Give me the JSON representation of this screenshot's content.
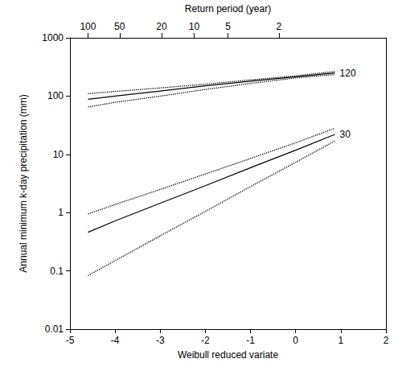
{
  "chart_data": {
    "type": "line",
    "x_label": "Weibull reduced variate",
    "y_label": "Annual minimum k-day precipitation (mm)",
    "x2_label": "Return period (year)",
    "log": "y",
    "grid": false,
    "xlim": [
      -5,
      2
    ],
    "xticks": [
      -5,
      -4,
      -3,
      -2,
      -1,
      0,
      1,
      2
    ],
    "x2lim": [
      -5,
      2
    ],
    "x2ticks": [
      {
        "value": -4.6,
        "label": "100"
      },
      {
        "value": -3.9,
        "label": "50"
      },
      {
        "value": -2.97,
        "label": "20"
      },
      {
        "value": -2.25,
        "label": "10"
      },
      {
        "value": -1.5,
        "label": "5"
      },
      {
        "value": -0.37,
        "label": "2"
      }
    ],
    "ylim": [
      0.01,
      1000
    ],
    "yticks": [
      0.01,
      0.1,
      1,
      10,
      100,
      1000
    ],
    "x": [
      -4.6,
      -4,
      -3,
      -2,
      -1,
      0,
      0.87
    ],
    "series": [
      {
        "name": "120",
        "color": "#000000",
        "line_style": "solid",
        "values": [
          88,
          100,
          122,
          150,
          180,
          215,
          250
        ]
      },
      {
        "color": "#000000",
        "line_style": "dotted",
        "values": [
          110,
          120,
          138,
          160,
          190,
          222,
          265
        ]
      },
      {
        "color": "#000000",
        "line_style": "dotted",
        "values": [
          65,
          78,
          100,
          130,
          165,
          205,
          235
        ]
      },
      {
        "name": "30",
        "color": "#000000",
        "line_style": "solid",
        "values": [
          0.46,
          0.72,
          1.45,
          2.9,
          5.9,
          11.8,
          22
        ]
      },
      {
        "color": "#000000",
        "line_style": "dotted",
        "values": [
          0.95,
          1.38,
          2.5,
          4.6,
          8.5,
          15.8,
          28
        ]
      },
      {
        "color": "#000000",
        "line_style": "dotted",
        "values": [
          0.083,
          0.15,
          0.4,
          1.05,
          2.8,
          7.3,
          17
        ]
      }
    ]
  }
}
